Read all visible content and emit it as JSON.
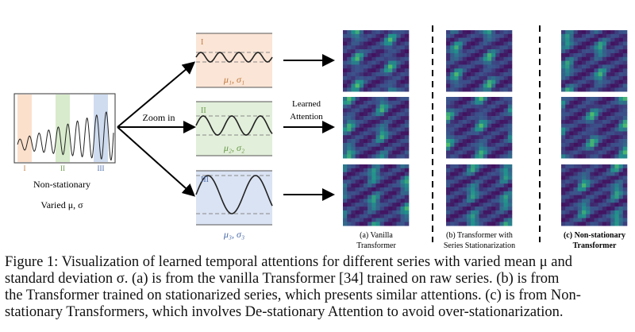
{
  "figure": {
    "segments": [
      "I",
      "II",
      "III"
    ],
    "source_label": "Non-stationary",
    "source_sublabel": "Varied μ, σ",
    "zoom_label": "Zoom in",
    "attention_label": [
      "Learned",
      "Attention"
    ],
    "zoom_panels": [
      {
        "roman": "I",
        "stats": "μ₁, σ₁"
      },
      {
        "roman": "II",
        "stats": "μ₂, σ₂"
      },
      {
        "roman": "III",
        "stats": "μ₃, σ₃"
      }
    ],
    "columns": [
      [
        "(a) Vanilla",
        "Transformer"
      ],
      [
        "(b) Transformer with",
        "Series Stationarization"
      ],
      [
        "(c) Non-stationary",
        "Transformer"
      ]
    ]
  },
  "caption": {
    "lines": [
      "Figure 1: Visualization of learned temporal attentions for different series with varied mean μ and",
      "standard deviation σ. (a) is from the vanilla Transformer [34] trained on raw series. (b) is from",
      "the Transformer trained on stationarized series, which presents similar attentions. (c) is from Non-",
      "stationary Transformers, which involves De-stationary Attention to avoid over-stationarization."
    ]
  }
}
